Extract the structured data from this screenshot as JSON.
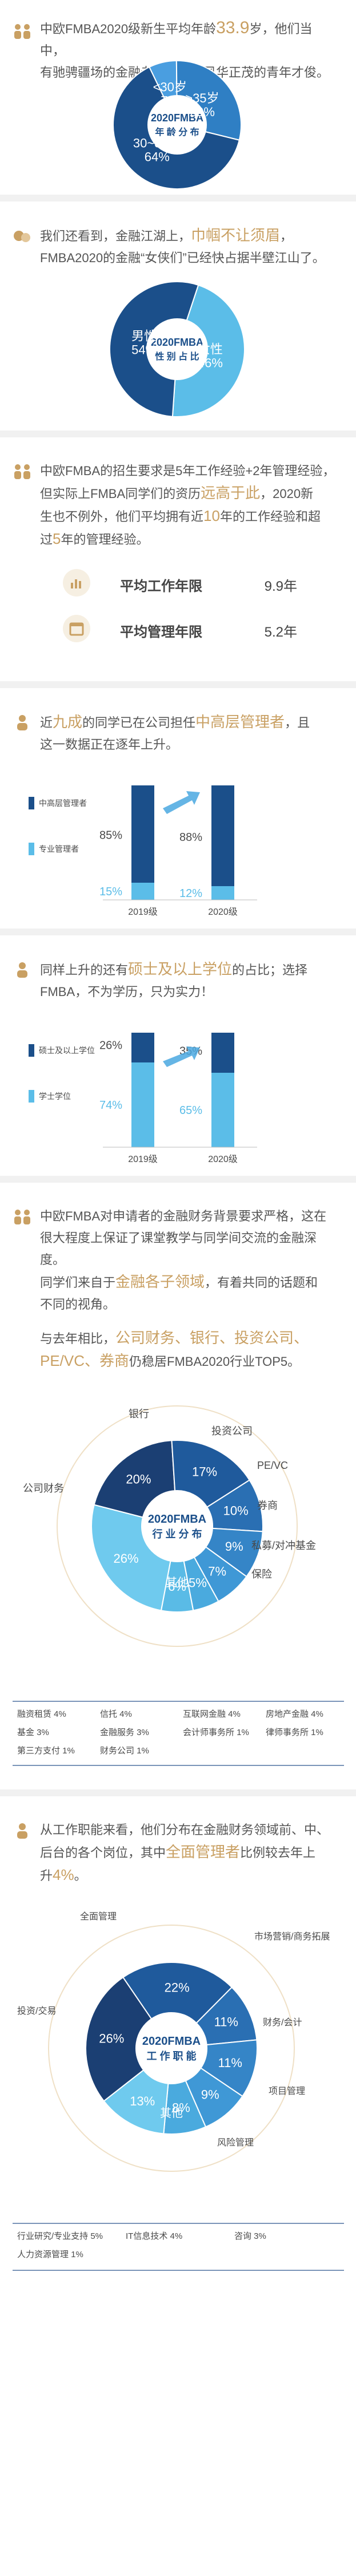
{
  "age": {
    "text1": "中欧FMBA2020级新生平均年龄",
    "age_value": "33.9",
    "text2": "岁，他们当中，",
    "text3": "有驰骋疆场的金融老兵，也有风华正茂的青年才俊。",
    "center_line1": "2020FMBA",
    "center_line2": "年 龄 分 布"
  },
  "gender": {
    "text1": "我们还看到，金融江湖上，",
    "highlight": "巾帼不让须眉",
    "text2": "，",
    "text3": "FMBA2020的金融“女侠们”已经快占据半壁江山了。",
    "center_line1": "2020FMBA",
    "center_line2": "性 别 占 比"
  },
  "experience": {
    "line1": "中欧FMBA的招生要求是5年工作经验+2年管理经验，",
    "line2a": "但实际上FMBA同学们的资历",
    "line2b": "远高于此",
    "line2c": "，2020新",
    "line3a": "生也不例外，他们平均拥有近",
    "line3b": "10",
    "line3c": "年的工作经验和超",
    "line4a": "过",
    "line4b": "5",
    "line4c": "年的管理经验。",
    "stats": [
      {
        "label": "平均工作年限",
        "value": "9.9年",
        "icon": "briefcase-icon"
      },
      {
        "label": "平均管理年限",
        "value": "5.2年",
        "icon": "calendar-icon"
      }
    ]
  },
  "management": {
    "text1": "近",
    "highlight1": "九成",
    "text2": "的同学已在公司担任",
    "highlight2": "中高层管理者",
    "text3": "，且",
    "text4": "这一数据正在逐年上升。"
  },
  "degree": {
    "text1": "同样上升的还有",
    "highlight": "硕士及以上学位",
    "text2": "的占比；选择",
    "text3": "FMBA，不为学历，只为实力！"
  },
  "industry": {
    "p1": "中欧FMBA对申请者的金融财务背景要求严格，这在",
    "p2": "很大程度上保证了课堂教学与同学间交流的金融深度。",
    "p3a": "同学们来自于",
    "p3b": "金融各子领域",
    "p3c": "，有着共同的话题和",
    "p4": "不同的视角。",
    "p5": "与去年相比，",
    "p5b": "公司财务、银行、投资公司、",
    "p6a": "PE/VC、券商",
    "p6b": "仍稳居FMBA2020行业TOP5。",
    "center_line1": "2020FMBA",
    "center_line2": "行 业 分 布",
    "table": [
      [
        "融资租赁 4%",
        "信托 4%",
        "互联网金融 4%",
        "房地产金融 4%"
      ],
      [
        "基金 3%",
        "金融服务 3%",
        "会计师事务所 1%",
        "律师事务所 1%"
      ],
      [
        "第三方支付 1%",
        "财务公司 1%",
        "",
        ""
      ]
    ]
  },
  "function": {
    "p1": "从工作职能来看，他们分布在金融财务领域前、中、",
    "p2a": "后台的各个岗位，其中",
    "p2b": "全面管理者",
    "p2c": "比例较去年上",
    "p3a": "升",
    "p3b": "4%",
    "p3c": "。",
    "center_line1": "2020FMBA",
    "center_line2": "工 作 职 能",
    "table": [
      [
        "行业研究/专业支持 5%",
        "IT信息技术 4%",
        "咨询 3%"
      ],
      [
        "人力资源管理 1%",
        "",
        ""
      ]
    ]
  },
  "chart_data": [
    {
      "type": "pie",
      "title": "2020FMBA 年龄分布",
      "categories": [
        "<30岁",
        ">35岁",
        "30~35岁"
      ],
      "values": [
        7,
        29,
        64
      ],
      "colors": [
        "#4a9ee0",
        "#2f7fc4",
        "#1b4f8a"
      ]
    },
    {
      "type": "pie",
      "title": "2020FMBA 性别占比",
      "categories": [
        "女性",
        "男性"
      ],
      "values": [
        46,
        54
      ],
      "colors": [
        "#5bbde8",
        "#1b4f8a"
      ]
    },
    {
      "type": "bar",
      "title": "",
      "categories": [
        "2019级",
        "2020级"
      ],
      "series": [
        {
          "name": "中高层管理者",
          "values": [
            85,
            88
          ]
        },
        {
          "name": "专业管理者",
          "values": [
            15,
            12
          ]
        }
      ],
      "ylim": [
        0,
        100
      ]
    },
    {
      "type": "bar",
      "title": "",
      "categories": [
        "2019级",
        "2020级"
      ],
      "series": [
        {
          "name": "硕士及以上学位",
          "values": [
            26,
            35
          ]
        },
        {
          "name": "学士学位",
          "values": [
            74,
            65
          ]
        }
      ],
      "ylim": [
        0,
        100
      ]
    },
    {
      "type": "pie",
      "title": "2020FMBA 行业分布",
      "categories": [
        "公司财务",
        "银行",
        "投资公司",
        "PE/VC",
        "券商",
        "私募/对冲基金",
        "保险",
        "其他"
      ],
      "values": [
        20,
        17,
        10,
        9,
        7,
        5,
        6,
        26
      ],
      "colors": [
        "#1b3f73",
        "#1f5a9c",
        "#2a6fb3",
        "#3585c7",
        "#3f98d6",
        "#4aaade",
        "#5abbe6",
        "#6fcaee"
      ]
    },
    {
      "type": "pie",
      "title": "2020FMBA 工作职能",
      "categories": [
        "全面管理",
        "市场营销/商务拓展",
        "财务/会计",
        "项目管理",
        "风险管理",
        "其他",
        "投资/交易"
      ],
      "values": [
        22,
        11,
        11,
        9,
        8,
        13,
        26
      ],
      "colors": [
        "#1f5a9c",
        "#2a6fb3",
        "#3585c7",
        "#3f98d6",
        "#4aaade",
        "#6fcaee",
        "#1b3f73"
      ]
    }
  ]
}
